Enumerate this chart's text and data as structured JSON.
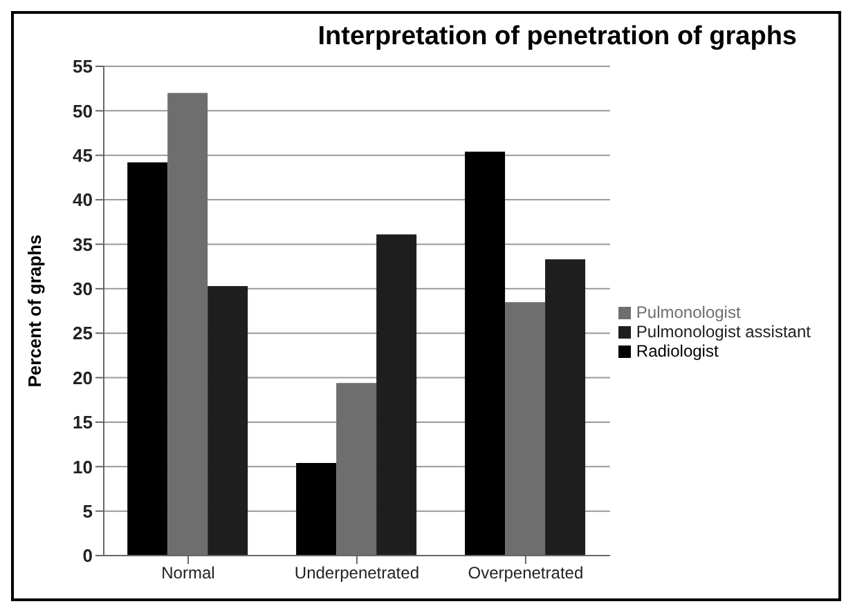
{
  "chart_data": {
    "type": "bar",
    "title": "Interpretation of penetration of graphs",
    "ylabel": "Percent of graphs",
    "categories": [
      "Normal",
      "Underpenetrated",
      "Overpenetrated"
    ],
    "series": [
      {
        "name": "Radiologist",
        "color": "#000000",
        "values": [
          44.2,
          10.4,
          45.4
        ]
      },
      {
        "name": "Pulmonologist",
        "color": "#6e6e6e",
        "values": [
          52,
          19.4,
          28.5
        ]
      },
      {
        "name": "Pulmonologist assistant",
        "color": "#1e1e1e",
        "values": [
          30.3,
          36.1,
          33.3
        ]
      }
    ],
    "ylim": [
      0,
      55
    ],
    "yticks": [
      0,
      5,
      10,
      15,
      20,
      25,
      30,
      35,
      40,
      45,
      50,
      55
    ],
    "grid": "y",
    "legend": "right"
  }
}
